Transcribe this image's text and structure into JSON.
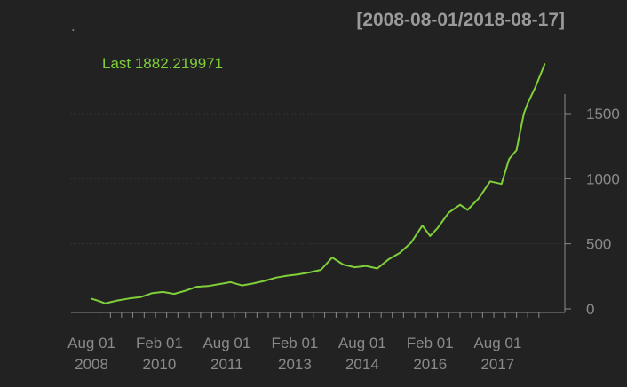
{
  "chart_data": {
    "type": "line",
    "title": "[2008-08-01/2018-08-17]",
    "subtitle_mark": ".",
    "legend_text": "Last 1882.219971",
    "colors": {
      "background": "#222222",
      "series": "#7fcf3a",
      "grid": "#3a3a3a",
      "axis": "#8a8a8a"
    },
    "ylim": [
      0,
      1950
    ],
    "y_ticks": [
      {
        "value": 0,
        "label": "0"
      },
      {
        "value": 500,
        "label": "500"
      },
      {
        "value": 1000,
        "label": "1000"
      },
      {
        "value": 1500,
        "label": "1500"
      }
    ],
    "x_ticks": [
      {
        "date": "2008-08-01",
        "label_top": "Aug 01",
        "label_bottom": "2008"
      },
      {
        "date": "2010-02-01",
        "label_top": "Feb 01",
        "label_bottom": "2010"
      },
      {
        "date": "2011-08-01",
        "label_top": "Aug 01",
        "label_bottom": "2011"
      },
      {
        "date": "2013-02-01",
        "label_top": "Feb 01",
        "label_bottom": "2013"
      },
      {
        "date": "2014-08-01",
        "label_top": "Aug 01",
        "label_bottom": "2014"
      },
      {
        "date": "2016-02-01",
        "label_top": "Feb 01",
        "label_bottom": "2016"
      },
      {
        "date": "2017-08-01",
        "label_top": "Aug 01",
        "label_bottom": "2017"
      }
    ],
    "series": [
      {
        "x": [
          "2008-08-01",
          "2008-10-01",
          "2008-11-20",
          "2009-01-01",
          "2009-03-01",
          "2009-06-01",
          "2009-09-01",
          "2009-12-01",
          "2010-03-01",
          "2010-06-01",
          "2010-09-01",
          "2010-12-01",
          "2011-03-01",
          "2011-06-01",
          "2011-09-01",
          "2011-12-01",
          "2012-03-01",
          "2012-06-01",
          "2012-09-01",
          "2012-12-01",
          "2013-03-01",
          "2013-06-01",
          "2013-09-01",
          "2013-12-01",
          "2014-03-01",
          "2014-06-01",
          "2014-09-01",
          "2014-12-01",
          "2015-03-01",
          "2015-06-01",
          "2015-09-01",
          "2015-12-01",
          "2016-02-01",
          "2016-04-01",
          "2016-07-01",
          "2016-10-01",
          "2016-12-01",
          "2017-03-01",
          "2017-06-01",
          "2017-09-01",
          "2017-11-01",
          "2018-01-01",
          "2018-03-01",
          "2018-04-01",
          "2018-06-01",
          "2018-08-17"
        ],
        "y": [
          78,
          60,
          42,
          52,
          65,
          80,
          90,
          120,
          130,
          115,
          140,
          170,
          175,
          190,
          205,
          180,
          195,
          215,
          240,
          255,
          265,
          280,
          300,
          395,
          340,
          320,
          330,
          310,
          380,
          430,
          510,
          640,
          560,
          620,
          740,
          800,
          760,
          850,
          980,
          960,
          1150,
          1220,
          1500,
          1580,
          1700,
          1882
        ]
      }
    ]
  }
}
